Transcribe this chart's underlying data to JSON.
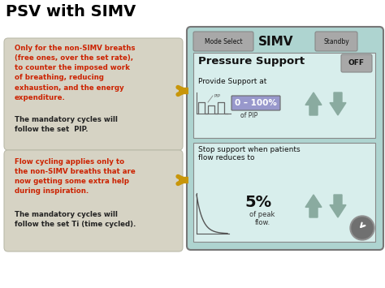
{
  "title": "PSV with SIMV",
  "title_fontsize": 14,
  "title_color": "#000000",
  "bg_color": "#ffffff",
  "box1_text_red": "Only for the non-SIMV breaths\n(free ones, over the set rate),\nto counter the imposed work\nof breathing, reducing\nexhaustion, and the energy\nexpenditure.",
  "box1_text_black": "The mandatory cycles will\nfollow the set  PIP.",
  "box2_text_red": "Flow cycling applies only to\nthe non-SIMV breaths that are\nnow getting some extra help\nduring inspiration.",
  "box2_text_black": "The mandatory cycles will\nfollow the set Ti (time cycled).",
  "box_bg": "#d6d3c4",
  "box_text_red": "#cc2200",
  "box_text_black": "#222222",
  "panel_bg": "#aed4d0",
  "panel_border": "#777777",
  "mode_select_text": "Mode Select",
  "simv_text": "SIMV",
  "standby_text": "Standby",
  "pressure_support_text": "Pressure Support",
  "off_text": "OFF",
  "provide_text": "Provide Support at",
  "pip_label": "PIP",
  "value_text": "0 – 100%",
  "of_pip_text": "of PIP",
  "stop_text": "Stop support when patients\nflow reduces to",
  "percent_text": "5%",
  "of_peak_text": "of peak\nflow.",
  "arrow_color": "#c8960a",
  "btn_bg": "#a8a8a8",
  "inner_bg": "#d8eeec",
  "val_box_color": "#9898cc"
}
